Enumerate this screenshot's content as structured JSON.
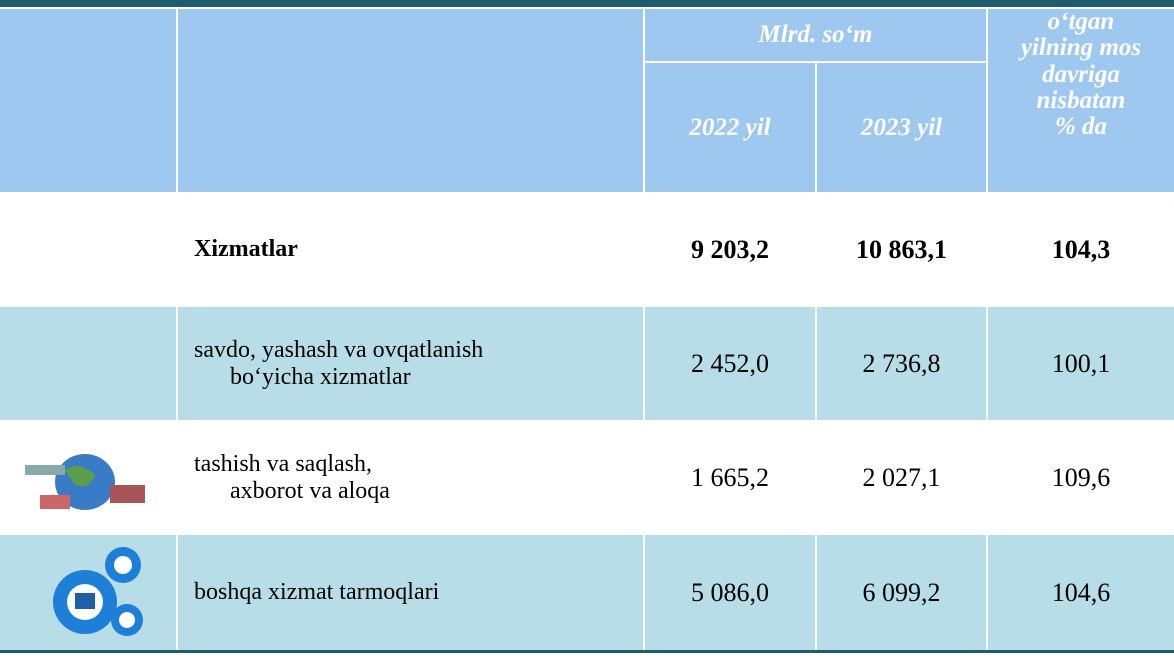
{
  "header": {
    "unit": "Mlrd. so‘m",
    "year1": "2022 yil",
    "year2": "2023 yil",
    "change": [
      "o‘tgan",
      "yilning mos",
      "davriga",
      "nisbatan",
      "% da"
    ]
  },
  "rows": [
    {
      "label": [
        "Xizmatlar"
      ],
      "v1": "9 203,2",
      "v2": "10 863,1",
      "pct": "104,3"
    },
    {
      "label": [
        "savdo, yashash va ovqatlanish",
        "bo‘yicha xizmatlar"
      ],
      "v1": "2 452,0",
      "v2": "2 736,8",
      "pct": "100,1"
    },
    {
      "label": [
        "tashish va saqlash,",
        "axborot va aloqa"
      ],
      "v1": "1 665,2",
      "v2": "2 027,1",
      "pct": "109,6"
    },
    {
      "label": [
        "boshqa xizmat tarmoqlari"
      ],
      "v1": "5 086,0",
      "v2": "6 099,2",
      "pct": "104,6"
    }
  ]
}
